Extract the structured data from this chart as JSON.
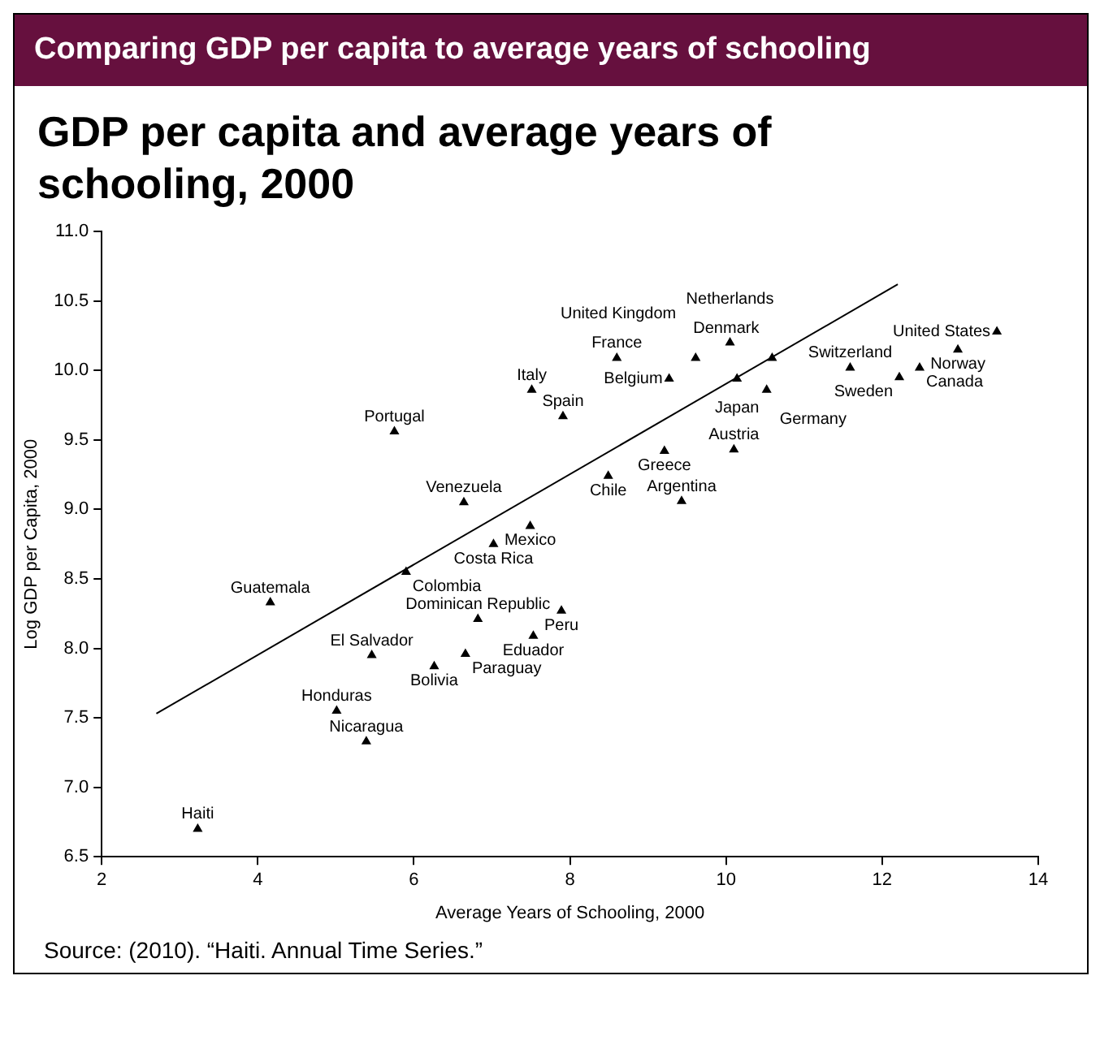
{
  "chart_data": {
    "type": "scatter",
    "title": "Comparing GDP per capita to average years of schooling",
    "subtitle": "GDP per capita and average years of schooling, 2000",
    "xlabel": "Average Years of Schooling, 2000",
    "ylabel": "Log GDP per Capita, 2000",
    "annotations": [
      "Source: (2010). “Haiti. Annual Time Series.”"
    ],
    "xlim": [
      2,
      14
    ],
    "xticks": [
      2,
      4,
      6,
      8,
      10,
      12,
      14
    ],
    "ylim": [
      6.5,
      11.0
    ],
    "yticks": [
      6.5,
      {
        "value": 7,
        "label": "7.0"
      },
      7.5,
      {
        "value": 8,
        "label": "8.0"
      },
      8.5,
      {
        "value": 9,
        "label": "9.0"
      },
      9.5,
      {
        "value": 10,
        "label": "10.0"
      },
      10.5,
      {
        "value": 11,
        "label": "11.0"
      }
    ],
    "grid": false,
    "legend": false,
    "series": [
      {
        "type": "scatter",
        "color": "#000000",
        "marker": "triangle",
        "x": [
          13.47,
          12.97,
          12.48,
          12.22,
          11.59,
          10.59,
          10.05,
          8.6,
          9.61,
          10.14,
          10.52,
          9.27,
          7.51,
          7.91,
          5.75,
          9.21,
          10.1,
          8.49,
          9.43,
          6.64,
          7.49,
          7.02,
          5.9,
          4.16,
          6.82,
          7.89,
          7.53,
          5.46,
          6.66,
          6.26,
          5.01,
          5.39,
          3.23
        ],
        "values": [
          10.28,
          10.15,
          10.02,
          9.95,
          10.02,
          10.09,
          10.2,
          10.09,
          10.09,
          9.94,
          9.86,
          9.94,
          9.86,
          9.67,
          9.56,
          9.42,
          9.43,
          9.24,
          9.06,
          9.05,
          8.88,
          8.75,
          8.55,
          8.33,
          8.21,
          8.27,
          8.09,
          7.95,
          7.96,
          7.87,
          7.55,
          7.33,
          6.7
        ],
        "value_labels": [
          "United States",
          "Norway",
          "Canada",
          "Sweden",
          "Switzerland",
          "Denmark",
          "Netherlands",
          "France",
          "United Kingdom",
          "Japan",
          "Germany",
          "Belgium",
          "Italy",
          "Spain",
          "Portugal",
          "Greece",
          "Austria",
          "Chile",
          "Argentina",
          "Venezuela",
          "Mexico",
          "Costa Rica",
          "Colombia",
          "Guatemala",
          "Dominican Republic",
          "Peru",
          "Eduador",
          "El Salvador",
          "Paraguay",
          "Bolivia",
          "Honduras",
          "Nicaragua",
          "Haiti"
        ]
      },
      {
        "type": "line",
        "color": "#000000",
        "marker": "none",
        "x": [
          2.7,
          12.2
        ],
        "values": [
          7.53,
          10.62
        ]
      }
    ]
  }
}
